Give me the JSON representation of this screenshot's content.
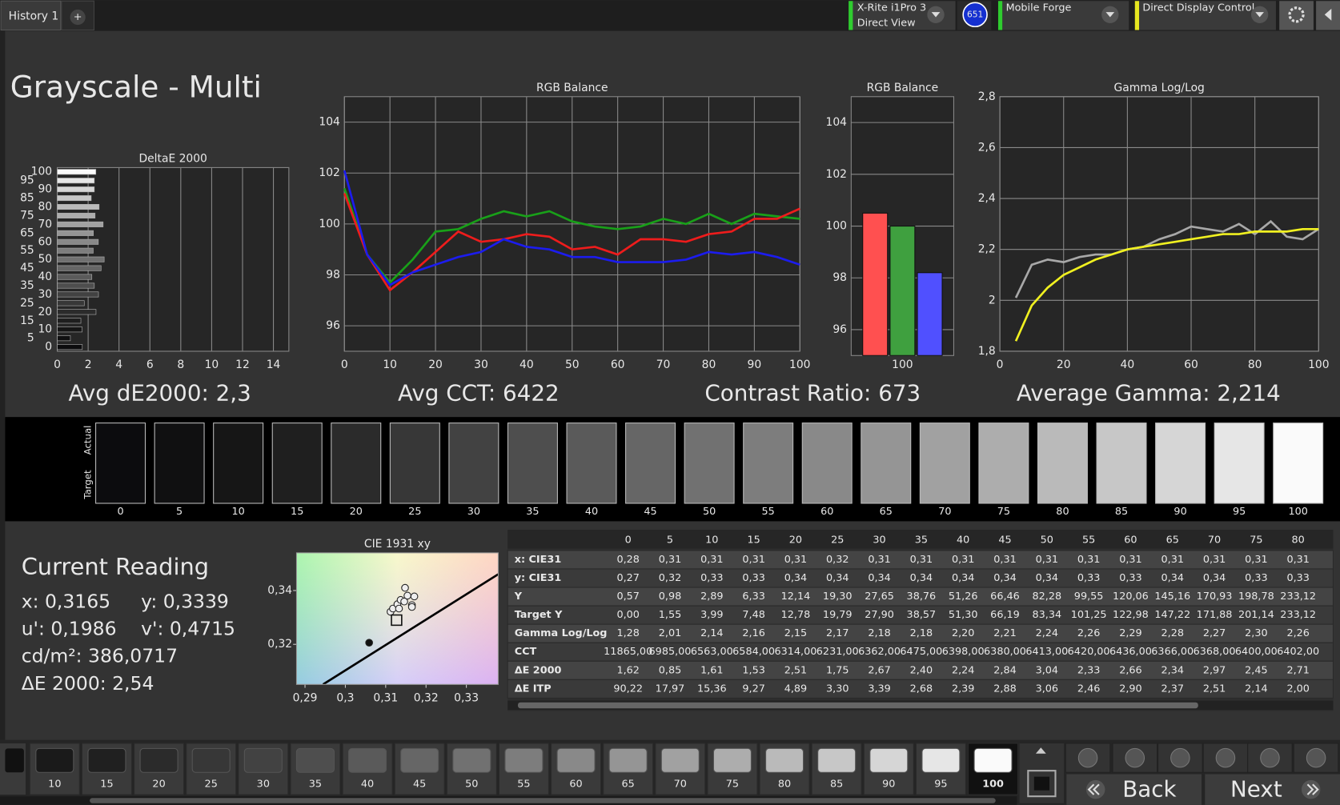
{
  "tabs": {
    "history": "History 1",
    "add": "+"
  },
  "toolbar": {
    "meter": [
      "X-Rite i1Pro 3",
      "Direct View"
    ],
    "meter_badge": "651",
    "generator": "Mobile Forge",
    "display": "Direct Display Control"
  },
  "title": "Grayscale - Multi",
  "chart_data": [
    {
      "type": "hbar",
      "title": "DeltaE 2000",
      "categories": [
        0,
        5,
        10,
        15,
        20,
        25,
        30,
        35,
        40,
        45,
        50,
        55,
        60,
        65,
        70,
        75,
        80,
        85,
        90,
        95,
        100
      ],
      "values": [
        1.62,
        0.85,
        1.61,
        1.53,
        2.51,
        1.75,
        2.67,
        2.4,
        2.24,
        2.84,
        3.04,
        2.33,
        2.66,
        2.34,
        2.97,
        2.45,
        2.71,
        2.2,
        2.4,
        2.4,
        2.5
      ],
      "colors": [
        "#0c0c0e",
        "#101011",
        "#161616",
        "#1f1f1f",
        "#2b2b2b",
        "#373737",
        "#424242",
        "#4e4e4e",
        "#5a5a5a",
        "#666666",
        "#717171",
        "#7d7d7d",
        "#898989",
        "#959595",
        "#a1a1a1",
        "#adadad",
        "#bababa",
        "#c7c7c7",
        "#d6d6d6",
        "#e6e6e6",
        "#fafafa"
      ],
      "xlim": [
        0,
        15
      ],
      "xticks": [
        0,
        2,
        4,
        6,
        8,
        10,
        12,
        14
      ],
      "grid": true
    },
    {
      "type": "line",
      "title": "RGB Balance",
      "x": [
        0,
        5,
        10,
        15,
        20,
        25,
        30,
        35,
        40,
        45,
        50,
        55,
        60,
        65,
        70,
        75,
        80,
        85,
        90,
        95,
        100
      ],
      "series": [
        {
          "color": "#19a019",
          "values": [
            101.4,
            98.8,
            97.7,
            98.6,
            99.7,
            99.8,
            100.2,
            100.5,
            100.3,
            100.5,
            100.1,
            99.9,
            99.8,
            99.9,
            100.2,
            100.0,
            100.4,
            100.0,
            100.4,
            100.3,
            100.2
          ]
        },
        {
          "color": "#ee1c1c",
          "values": [
            101.2,
            98.8,
            97.4,
            98.1,
            98.9,
            99.7,
            99.3,
            99.4,
            99.6,
            99.5,
            99.0,
            99.1,
            98.8,
            99.4,
            99.4,
            99.3,
            99.6,
            99.7,
            100.2,
            100.2,
            100.6
          ]
        },
        {
          "color": "#1c1cee",
          "values": [
            102.1,
            98.8,
            97.6,
            98.1,
            98.4,
            98.7,
            98.9,
            99.4,
            99.1,
            99.0,
            98.7,
            98.7,
            98.5,
            98.5,
            98.5,
            98.6,
            98.9,
            98.8,
            98.9,
            98.7,
            98.4
          ]
        }
      ],
      "xlim": [
        0,
        100
      ],
      "xticks": [
        0,
        10,
        20,
        30,
        40,
        50,
        60,
        70,
        80,
        90,
        100
      ],
      "ylim": [
        95,
        105
      ],
      "yticks": [
        96,
        98,
        100,
        102,
        104
      ],
      "grid": true
    },
    {
      "type": "bar",
      "title": "RGB Balance",
      "categories": [
        100
      ],
      "series": [
        {
          "color": "#ff5050",
          "values": [
            100.5
          ]
        },
        {
          "color": "#3fa03f",
          "values": [
            100.0
          ]
        },
        {
          "color": "#5050ff",
          "values": [
            98.2
          ]
        }
      ],
      "ylim": [
        95,
        105
      ],
      "yticks": [
        96,
        98,
        100,
        102,
        104
      ],
      "grid": true
    },
    {
      "type": "line",
      "title": "Gamma Log/Log",
      "x": [
        5,
        10,
        15,
        20,
        25,
        30,
        35,
        40,
        45,
        50,
        55,
        60,
        65,
        70,
        75,
        80,
        85,
        90,
        95,
        100
      ],
      "series": [
        {
          "color": "#a8a8a8",
          "values": [
            2.01,
            2.14,
            2.16,
            2.15,
            2.17,
            2.18,
            2.18,
            2.2,
            2.21,
            2.24,
            2.26,
            2.29,
            2.28,
            2.27,
            2.3,
            2.26,
            2.31,
            2.25,
            2.24,
            2.28
          ]
        },
        {
          "color": "#f0f020",
          "values": [
            1.84,
            1.98,
            2.05,
            2.1,
            2.13,
            2.16,
            2.18,
            2.2,
            2.21,
            2.22,
            2.23,
            2.24,
            2.25,
            2.26,
            2.26,
            2.27,
            2.27,
            2.27,
            2.28,
            2.28
          ]
        }
      ],
      "xlim": [
        0,
        100
      ],
      "xticks": [
        0,
        20,
        40,
        60,
        80,
        100
      ],
      "ylim": [
        1.8,
        2.8
      ],
      "yticks": [
        {
          "value": 1.8,
          "label": "1,8"
        },
        2,
        {
          "value": 2.2,
          "label": "2,2"
        },
        {
          "value": 2.4,
          "label": "2,4"
        },
        {
          "value": 2.6,
          "label": "2,6"
        },
        {
          "value": 2.8,
          "label": "2,8"
        }
      ],
      "grid": true
    },
    {
      "type": "scatter",
      "title": "CIE 1931 xy",
      "series": [
        {
          "color": "#eeeeee",
          "x": [
            0.3112,
            0.3118,
            0.3129,
            0.3137,
            0.3148,
            0.3154,
            0.3165,
            0.3171,
            0.3146,
            0.3133,
            0.3165
          ],
          "values": [
            0.3321,
            0.3333,
            0.3349,
            0.3365,
            0.341,
            0.3381,
            0.3346,
            0.3378,
            0.3359,
            0.3333,
            0.3339
          ]
        },
        {
          "color": "#111111",
          "x": [
            0.3059
          ],
          "values": [
            0.3206
          ]
        },
        {
          "color": "#ffffff",
          "marker": "square",
          "x": [
            0.3127
          ],
          "values": [
            0.329
          ]
        }
      ],
      "xlim": [
        0.2879,
        0.3379
      ],
      "xticks": [
        {
          "value": 0.29,
          "label": "0,29"
        },
        {
          "value": 0.3,
          "label": "0,3"
        },
        {
          "value": 0.31,
          "label": "0,31"
        },
        {
          "value": 0.32,
          "label": "0,32"
        },
        {
          "value": 0.33,
          "label": "0,33"
        }
      ],
      "ylim": [
        0.3051,
        0.354
      ],
      "yticks": [
        {
          "value": 0.32,
          "label": "0,32"
        },
        {
          "value": 0.34,
          "label": "0,34"
        }
      ]
    }
  ],
  "summary": [
    "Avg dE2000: 2,3",
    "Avg CCT: 6422",
    "Contrast Ratio: 673",
    "Average Gamma: 2,214"
  ],
  "swatches": {
    "labels": [
      "Actual",
      "Target"
    ],
    "levels": [
      0,
      5,
      10,
      15,
      20,
      25,
      30,
      35,
      40,
      45,
      50,
      55,
      60,
      65,
      70,
      75,
      80,
      85,
      90,
      95,
      100
    ],
    "colors": [
      "#0c0c0e",
      "#101011",
      "#161616",
      "#1f1f1f",
      "#2b2b2b",
      "#373737",
      "#424242",
      "#4e4e4e",
      "#5a5a5a",
      "#666666",
      "#717171",
      "#7d7d7d",
      "#898989",
      "#959595",
      "#a1a1a1",
      "#adadad",
      "#bababa",
      "#c7c7c7",
      "#d6d6d6",
      "#e6e6e6",
      "#fafafa"
    ]
  },
  "current_reading": {
    "title": "Current Reading",
    "fields": [
      "x: 0,3165",
      "y: 0,3339",
      "u': 0,1986",
      "v': 0,4715",
      "cd/m²: 386,0717",
      "ΔE 2000: 2,54"
    ]
  },
  "table": {
    "columns": [
      0,
      5,
      10,
      15,
      20,
      25,
      30,
      35,
      40,
      45,
      50,
      55,
      60,
      65,
      70,
      75,
      80
    ],
    "rows": [
      {
        "label": "x: CIE31",
        "cells": [
          "0,28",
          "0,31",
          "0,31",
          "0,31",
          "0,31",
          "0,32",
          "0,31",
          "0,31",
          "0,31",
          "0,31",
          "0,31",
          "0,31",
          "0,31",
          "0,31",
          "0,31",
          "0,31",
          "0,31"
        ]
      },
      {
        "label": "y: CIE31",
        "cells": [
          "0,27",
          "0,32",
          "0,33",
          "0,33",
          "0,34",
          "0,34",
          "0,34",
          "0,34",
          "0,34",
          "0,34",
          "0,34",
          "0,33",
          "0,33",
          "0,34",
          "0,34",
          "0,33",
          "0,33"
        ]
      },
      {
        "label": "Y",
        "cells": [
          "0,57",
          "0,98",
          "2,89",
          "6,33",
          "12,14",
          "19,30",
          "27,65",
          "38,76",
          "51,26",
          "66,46",
          "82,28",
          "99,55",
          "120,06",
          "145,16",
          "170,93",
          "198,78",
          "233,12"
        ]
      },
      {
        "label": "Target Y",
        "cells": [
          "0,00",
          "1,55",
          "3,99",
          "7,48",
          "12,78",
          "19,79",
          "27,90",
          "38,57",
          "51,30",
          "66,19",
          "83,34",
          "101,25",
          "122,98",
          "147,22",
          "171,88",
          "201,14",
          "233,12"
        ]
      },
      {
        "label": "Gamma Log/Log",
        "cells": [
          "1,28",
          "2,01",
          "2,14",
          "2,16",
          "2,15",
          "2,17",
          "2,18",
          "2,18",
          "2,20",
          "2,21",
          "2,24",
          "2,26",
          "2,29",
          "2,28",
          "2,27",
          "2,30",
          "2,26"
        ]
      },
      {
        "label": "CCT",
        "cells": [
          "11865,00",
          "6985,00",
          "6563,00",
          "6584,00",
          "6314,00",
          "6231,00",
          "6362,00",
          "6475,00",
          "6398,00",
          "6380,00",
          "6413,00",
          "6420,00",
          "6436,00",
          "6366,00",
          "6368,00",
          "6400,00",
          "6402,00"
        ]
      },
      {
        "label": "ΔE 2000",
        "cells": [
          "1,62",
          "0,85",
          "1,61",
          "1,53",
          "2,51",
          "1,75",
          "2,67",
          "2,40",
          "2,24",
          "2,84",
          "3,04",
          "2,33",
          "2,66",
          "2,34",
          "2,97",
          "2,45",
          "2,71"
        ]
      },
      {
        "label": "ΔE ITP",
        "cells": [
          "90,22",
          "17,97",
          "15,36",
          "9,27",
          "4,89",
          "3,30",
          "3,39",
          "2,68",
          "2,39",
          "2,88",
          "3,06",
          "2,46",
          "2,90",
          "2,37",
          "2,51",
          "2,14",
          "2,00"
        ]
      }
    ]
  },
  "patch_bar": {
    "levels": [
      10,
      15,
      20,
      25,
      30,
      35,
      40,
      45,
      50,
      55,
      60,
      65,
      70,
      75,
      80,
      85,
      90,
      95,
      100
    ],
    "colors": [
      "#1a1a1a",
      "#202020",
      "#2b2b2b",
      "#373737",
      "#424242",
      "#4e4e4e",
      "#5a5a5a",
      "#666666",
      "#717171",
      "#7d7d7d",
      "#898989",
      "#959595",
      "#a1a1a1",
      "#adadad",
      "#bababa",
      "#c7c7c7",
      "#d6d6d6",
      "#e6e6e6",
      "#fafafa"
    ]
  },
  "nav": {
    "back": "Back",
    "next": "Next"
  }
}
